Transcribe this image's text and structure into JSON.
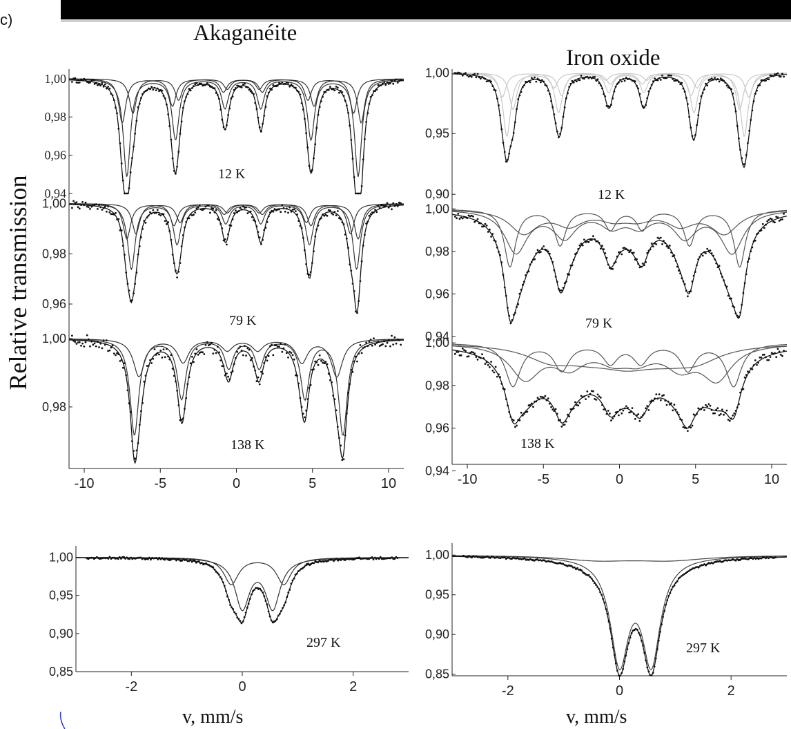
{
  "panel_label": "c)",
  "titles": {
    "left": "Akaganéite",
    "right": "Iron oxide"
  },
  "ylabel": "Relative transmission",
  "xlabel": "v, mm/s",
  "chart_data": [
    {
      "id": "aka-12",
      "type": "line",
      "column": "Akaganéite",
      "temperature_label": "12 K",
      "xlim": [
        -11,
        11
      ],
      "ylim": [
        0.94,
        1.005
      ],
      "yticks": [
        1.0,
        0.98,
        0.96,
        0.94
      ],
      "ytick_labels": [
        "1,00",
        "0,98",
        "0,96",
        "0,94"
      ],
      "baseline": 1.0,
      "fit_color": "#333333",
      "components": [
        {
          "depth": 0.051,
          "width": 0.28,
          "lines": [
            -7.2,
            -4.0,
            -0.75,
            1.6,
            4.9,
            8.0
          ],
          "rel": [
            1,
            0.62,
            0.3,
            0.3,
            0.62,
            1
          ]
        },
        {
          "depth": 0.023,
          "width": 0.28,
          "lines": [
            -7.5,
            -4.2,
            -0.85,
            1.7,
            5.1,
            8.2
          ],
          "rel": [
            1,
            0.62,
            0.3,
            0.3,
            0.62,
            1
          ]
        },
        {
          "depth": 0.018,
          "width": 0.28,
          "lines": [
            -6.8,
            -3.8,
            -0.6,
            1.5,
            4.7,
            7.7
          ],
          "rel": [
            1,
            0.62,
            0.3,
            0.3,
            0.62,
            1
          ]
        }
      ],
      "total_scale": 1.0,
      "noise": 0.0012
    },
    {
      "id": "aka-79",
      "type": "line",
      "column": "Akaganéite",
      "temperature_label": "79 K",
      "xlim": [
        -11,
        11
      ],
      "ylim": [
        0.949,
        1.004
      ],
      "yticks": [
        1.0,
        0.98,
        0.96
      ],
      "ytick_labels": [
        "1,00",
        "0,98",
        "0,96"
      ],
      "baseline": 1.0,
      "fit_color": "#333333",
      "components": [
        {
          "depth": 0.026,
          "width": 0.3,
          "lines": [
            -6.9,
            -3.9,
            -0.7,
            1.6,
            4.8,
            7.9
          ],
          "rel": [
            1,
            0.62,
            0.3,
            0.3,
            0.62,
            1
          ]
        },
        {
          "depth": 0.014,
          "width": 0.3,
          "lines": [
            -7.2,
            -4.1,
            -0.8,
            1.7,
            4.9,
            8.0
          ],
          "rel": [
            1,
            0.62,
            0.3,
            0.3,
            0.62,
            1
          ]
        },
        {
          "depth": 0.012,
          "width": 0.3,
          "lines": [
            -6.6,
            -3.7,
            -0.6,
            1.5,
            4.6,
            7.5
          ],
          "rel": [
            1,
            0.62,
            0.3,
            0.3,
            0.62,
            1
          ]
        }
      ],
      "total_scale": 1.0,
      "noise": 0.0015
    },
    {
      "id": "aka-138",
      "type": "line",
      "column": "Akaganéite",
      "temperature_label": "138 K",
      "xlim": [
        -11,
        11
      ],
      "ylim": [
        0.962,
        1.002
      ],
      "yticks": [
        1.0,
        0.98
      ],
      "ytick_labels": [
        "1,00",
        "0,98"
      ],
      "baseline": 1.0,
      "fit_color": "#333333",
      "components": [
        {
          "depth": 0.028,
          "width": 0.35,
          "lines": [
            -6.7,
            -3.6,
            -0.5,
            1.5,
            4.5,
            7.0
          ],
          "rel": [
            1,
            0.62,
            0.3,
            0.3,
            0.62,
            1
          ]
        },
        {
          "depth": 0.011,
          "width": 0.45,
          "lines": [
            -6.4,
            -3.5,
            -0.6,
            1.4,
            4.3,
            6.6
          ],
          "rel": [
            1,
            0.62,
            0.3,
            0.3,
            0.62,
            1
          ]
        }
      ],
      "total_scale": 1.0,
      "noise": 0.0018
    },
    {
      "id": "aka-297",
      "type": "line",
      "column": "Akaganéite",
      "temperature_label": "297 K",
      "xlim": [
        -3,
        3
      ],
      "ylim": [
        0.85,
        1.015
      ],
      "yticks": [
        1.0,
        0.95,
        0.9,
        0.85
      ],
      "ytick_labels": [
        "1,00",
        "0,95",
        "0,90",
        "0,85"
      ],
      "xticks": [
        -2,
        0,
        2
      ],
      "xtick_labels": [
        "-2",
        "0",
        "2"
      ],
      "baseline": 1.0,
      "fit_color": "#333333",
      "components": [
        {
          "depth": 0.065,
          "width": 0.16,
          "lines": [
            0.0,
            0.55
          ],
          "rel": [
            1,
            1
          ]
        },
        {
          "depth": 0.035,
          "width": 0.16,
          "lines": [
            -0.2,
            0.75
          ],
          "rel": [
            1,
            1
          ]
        }
      ],
      "total_scale": 1.0,
      "noise": 0.0015
    },
    {
      "id": "ox-12",
      "type": "line",
      "column": "Iron oxide",
      "temperature_label": "12 K",
      "xlim": [
        -11,
        11
      ],
      "ylim": [
        0.895,
        1.003
      ],
      "yticks": [
        1.0,
        0.95,
        0.9
      ],
      "ytick_labels": [
        "1,00",
        "0,95",
        "0,90"
      ],
      "baseline": 1.0,
      "fit_color": "#c8c8c8",
      "components": [
        {
          "depth": 0.052,
          "width": 0.3,
          "lines": [
            -7.4,
            -4.0,
            -0.7,
            1.6,
            4.9,
            8.2
          ],
          "rel": [
            1,
            0.62,
            0.3,
            0.3,
            0.62,
            1
          ]
        },
        {
          "depth": 0.03,
          "width": 0.3,
          "lines": [
            -7.0,
            -3.8,
            -0.6,
            1.5,
            4.7,
            7.9
          ],
          "rel": [
            1,
            0.62,
            0.3,
            0.3,
            0.62,
            1
          ]
        },
        {
          "depth": 0.02,
          "width": 0.3,
          "lines": [
            -7.7,
            -4.3,
            -0.9,
            1.8,
            5.1,
            8.5
          ],
          "rel": [
            1,
            0.62,
            0.3,
            0.3,
            0.62,
            1
          ]
        }
      ],
      "total_scale": 1.0,
      "noise": 0.0018
    },
    {
      "id": "ox-79",
      "type": "line",
      "column": "Iron oxide",
      "temperature_label": "79 K",
      "xlim": [
        -11,
        11
      ],
      "ylim": [
        0.939,
        1.004
      ],
      "yticks": [
        1.0,
        0.98,
        0.96,
        0.94
      ],
      "ytick_labels": [
        "1,00",
        "0,98",
        "0,96",
        "0,94"
      ],
      "baseline": 1.0,
      "fit_color": "#555555",
      "components": [
        {
          "depth": 0.027,
          "width": 0.45,
          "lines": [
            -7.2,
            -3.9,
            -0.6,
            1.5,
            4.6,
            7.9
          ],
          "rel": [
            1,
            0.62,
            0.35,
            0.35,
            0.62,
            1
          ]
        },
        {
          "depth": 0.02,
          "width": 0.9,
          "lines": [
            -6.8,
            -3.6,
            -0.5,
            1.3,
            4.3,
            7.4
          ],
          "rel": [
            1,
            0.62,
            0.35,
            0.35,
            0.62,
            1
          ]
        },
        {
          "depth": 0.011,
          "width": 1.1,
          "lines": [
            -6.3,
            -3.3,
            -0.4,
            1.2,
            4.0,
            6.9
          ],
          "rel": [
            1,
            0.62,
            0.35,
            0.35,
            0.62,
            1
          ]
        }
      ],
      "total_scale": 1.0,
      "noise": 0.0015
    },
    {
      "id": "ox-138",
      "type": "line",
      "column": "Iron oxide",
      "temperature_label": "138 K",
      "xlim": [
        -11,
        11
      ],
      "ylim": [
        0.943,
        1.002
      ],
      "yticks": [
        1.0,
        0.98,
        0.96,
        0.94
      ],
      "ytick_labels": [
        "1,00",
        "0,98",
        "0,96",
        "0,94"
      ],
      "baseline": 1.0,
      "fit_color": "#555555",
      "components": [
        {
          "depth": 0.02,
          "width": 0.6,
          "lines": [
            -7.0,
            -3.8,
            -0.6,
            1.4,
            4.5,
            7.5
          ],
          "rel": [
            1,
            0.62,
            0.45,
            0.45,
            0.62,
            1
          ]
        },
        {
          "depth": 0.016,
          "width": 1.2,
          "lines": [
            -6.2,
            -3.3,
            -0.4,
            1.2,
            4.0,
            6.4
          ],
          "rel": [
            1,
            0.62,
            0.4,
            0.4,
            0.62,
            1
          ]
        },
        {
          "depth": 0.007,
          "width": 2.0,
          "lines": [
            -4.5,
            -2.0,
            0.0,
            1.0,
            3.0,
            5.0
          ],
          "rel": [
            1,
            0.6,
            0.6,
            0.6,
            0.6,
            1
          ]
        }
      ],
      "total_scale": 1.0,
      "noise": 0.002
    },
    {
      "id": "ox-297",
      "type": "line",
      "column": "Iron oxide",
      "temperature_label": "297 K",
      "xlim": [
        -3,
        3
      ],
      "ylim": [
        0.848,
        1.015
      ],
      "yticks": [
        1.0,
        0.95,
        0.9,
        0.85
      ],
      "ytick_labels": [
        "1,00",
        "0,95",
        "0,90",
        "0,85"
      ],
      "xticks": [
        -2,
        0,
        2
      ],
      "xtick_labels": [
        "-2",
        "0",
        "2"
      ],
      "baseline": 1.0,
      "fit_color": "#444444",
      "components": [
        {
          "depth": 0.13,
          "width": 0.2,
          "lines": [
            0.0,
            0.57
          ],
          "rel": [
            1,
            1
          ]
        },
        {
          "depth": 0.006,
          "width": 0.8,
          "lines": [
            -0.4,
            0.9
          ],
          "rel": [
            1,
            1
          ]
        }
      ],
      "total_scale": 1.0,
      "noise": 0.0012
    }
  ],
  "xticks_top": [
    -10,
    -5,
    0,
    5,
    10
  ],
  "xtick_labels_top": [
    "-10",
    "-5",
    "0",
    "5",
    "10"
  ]
}
